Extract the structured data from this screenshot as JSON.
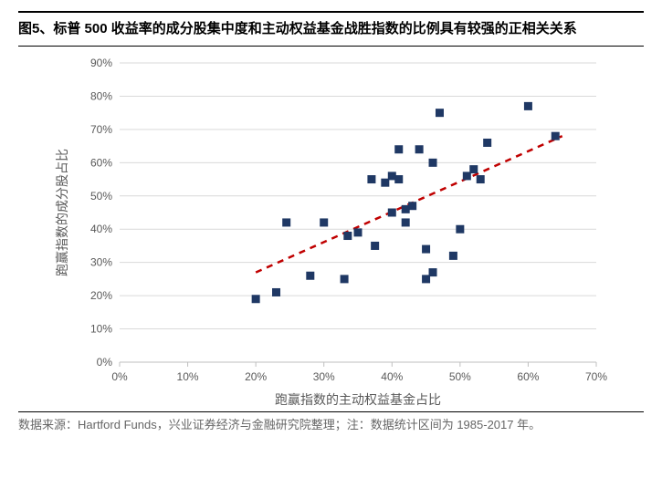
{
  "title": "图5、标普 500 收益率的成分股集中度和主动权益基金战胜指数的比例具有较强的正相关关系",
  "footer": "数据来源：Hartford Funds，兴业证券经济与金融研究院整理；注：数据统计区间为 1985-2017 年。",
  "chart": {
    "type": "scatter",
    "xlabel": "跑赢指数的主动权益基金占比",
    "ylabel": "跑赢指数的成分股占比",
    "xlim": [
      0,
      70
    ],
    "ylim": [
      0,
      90
    ],
    "xtick_step": 10,
    "ytick_step": 10,
    "tick_suffix": "%",
    "tick_fontsize": 12,
    "label_fontsize": 14,
    "tick_color": "#595959",
    "label_color": "#595959",
    "background_color": "#ffffff",
    "grid_color": "#d9d9d9",
    "grid_width": 1,
    "axis_color": "#bfbfbf",
    "marker_color": "#1f3864",
    "marker_size": 9,
    "trend_color": "#c00000",
    "trend_width": 2.5,
    "trend_dash": "7,6",
    "trend_line": {
      "x1": 20,
      "y1": 27,
      "x2": 65,
      "y2": 68
    },
    "points": [
      {
        "x": 20,
        "y": 19
      },
      {
        "x": 23,
        "y": 21
      },
      {
        "x": 24.5,
        "y": 42
      },
      {
        "x": 28,
        "y": 26
      },
      {
        "x": 30,
        "y": 42
      },
      {
        "x": 33,
        "y": 25
      },
      {
        "x": 33.5,
        "y": 38
      },
      {
        "x": 35,
        "y": 39
      },
      {
        "x": 37,
        "y": 55
      },
      {
        "x": 37.5,
        "y": 35
      },
      {
        "x": 39,
        "y": 54
      },
      {
        "x": 40,
        "y": 45
      },
      {
        "x": 40,
        "y": 56
      },
      {
        "x": 41,
        "y": 55
      },
      {
        "x": 41,
        "y": 64
      },
      {
        "x": 42,
        "y": 46
      },
      {
        "x": 42,
        "y": 42
      },
      {
        "x": 43,
        "y": 47
      },
      {
        "x": 44,
        "y": 64
      },
      {
        "x": 45,
        "y": 34
      },
      {
        "x": 45,
        "y": 25
      },
      {
        "x": 46,
        "y": 27
      },
      {
        "x": 46,
        "y": 60
      },
      {
        "x": 47,
        "y": 75
      },
      {
        "x": 49,
        "y": 32
      },
      {
        "x": 50,
        "y": 40
      },
      {
        "x": 51,
        "y": 56
      },
      {
        "x": 52,
        "y": 58
      },
      {
        "x": 53,
        "y": 55
      },
      {
        "x": 54,
        "y": 66
      },
      {
        "x": 60,
        "y": 77
      },
      {
        "x": 64,
        "y": 68
      }
    ]
  }
}
